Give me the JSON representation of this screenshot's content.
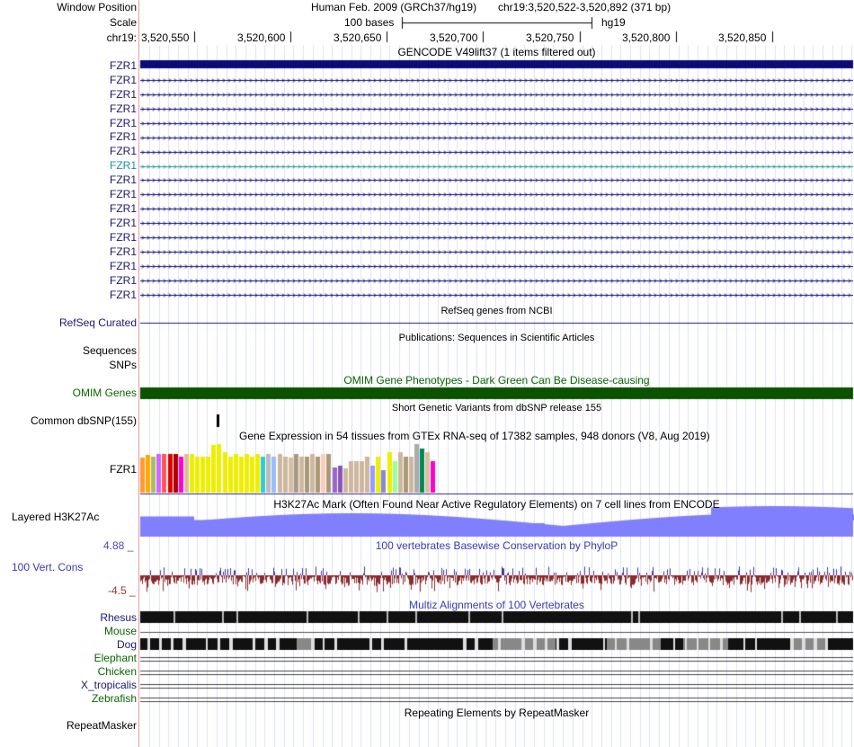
{
  "header": {
    "window_position_label": "Window Position",
    "assembly_text": "Human Feb. 2009 (GRCh37/hg19)",
    "position_text": "chr19:3,520,522-3,520,892 (371 bp)",
    "scale_label": "Scale",
    "scale_bar_text": "100 bases",
    "scale_db": "hg19",
    "chrom_label": "chr19:",
    "ruler_ticks": [
      "3,520,550",
      "3,520,600",
      "3,520,650",
      "3,520,700",
      "3,520,750",
      "3,520,800",
      "3,520,850"
    ]
  },
  "gencode": {
    "title": "GENCODE V49lift37 (1 items filtered out)",
    "transcripts": [
      "FZR1",
      "FZR1",
      "FZR1",
      "FZR1",
      "FZR1",
      "FZR1",
      "FZR1",
      "FZR1",
      "FZR1",
      "FZR1",
      "FZR1",
      "FZR1",
      "FZR1",
      "FZR1",
      "FZR1",
      "FZR1",
      "FZR1"
    ],
    "highlighted_index": 7,
    "colors": {
      "main": "#0c0c78",
      "highlight": "#1f8ea3"
    }
  },
  "refseq": {
    "label": "RefSeq Curated",
    "title": "RefSeq genes from NCBI"
  },
  "publications": {
    "label": "Sequences",
    "title": "Publications: Sequences in Scientific Articles"
  },
  "snps_label": "SNPs",
  "omim": {
    "label": "OMIM Genes",
    "title": "OMIM Gene Phenotypes - Dark Green Can Be Disease-causing",
    "color": "#0a5200"
  },
  "dbsnp": {
    "label": "Common dbSNP(155)",
    "title": "Short Genetic Variants from dbSNP release 155"
  },
  "gtex": {
    "label": "FZR1",
    "title": "Gene Expression in 54 tissues from GTEx RNA-seq of 17382 samples, 948 donors (V8, Aug 2019)",
    "bars": [
      {
        "c": "#ff9933",
        "v": 0.72
      },
      {
        "c": "#ffaa00",
        "v": 0.78
      },
      {
        "c": "#aabb66",
        "v": 0.74
      },
      {
        "c": "#cc66ff",
        "v": 0.8
      },
      {
        "c": "#ff5555",
        "v": 0.8
      },
      {
        "c": "#dd0000",
        "v": 0.8
      },
      {
        "c": "#aa0000",
        "v": 0.8
      },
      {
        "c": "#ff00cc",
        "v": 0.74
      },
      {
        "c": "#d8bfa0",
        "v": 0.8
      },
      {
        "c": "#eeee00",
        "v": 0.8
      },
      {
        "c": "#eeee00",
        "v": 0.74
      },
      {
        "c": "#eeee00",
        "v": 0.74
      },
      {
        "c": "#eeee00",
        "v": 0.74
      },
      {
        "c": "#eeee00",
        "v": 0.98
      },
      {
        "c": "#eeee00",
        "v": 1.0
      },
      {
        "c": "#eeee00",
        "v": 0.84
      },
      {
        "c": "#eeee00",
        "v": 0.74
      },
      {
        "c": "#eeee00",
        "v": 0.8
      },
      {
        "c": "#eeee00",
        "v": 0.74
      },
      {
        "c": "#eeee00",
        "v": 0.8
      },
      {
        "c": "#eeee00",
        "v": 0.74
      },
      {
        "c": "#eeee00",
        "v": 0.8
      },
      {
        "c": "#33cccc",
        "v": 0.74
      },
      {
        "c": "#bbbbbb",
        "v": 0.8
      },
      {
        "c": "#99bbff",
        "v": 0.74
      },
      {
        "c": "#cdb79e",
        "v": 0.8
      },
      {
        "c": "#cdb79e",
        "v": 0.74
      },
      {
        "c": "#d8bfa0",
        "v": 0.72
      },
      {
        "c": "#aa9988",
        "v": 0.8
      },
      {
        "c": "#cdb79e",
        "v": 0.74
      },
      {
        "c": "#aa9977",
        "v": 0.74
      },
      {
        "c": "#cdb79e",
        "v": 0.8
      },
      {
        "c": "#aa9977",
        "v": 0.74
      },
      {
        "c": "#ffccbb",
        "v": 0.8
      },
      {
        "c": "#aa9977",
        "v": 0.8
      },
      {
        "c": "#9966cc",
        "v": 0.52
      },
      {
        "c": "#8855bb",
        "v": 0.56
      },
      {
        "c": "#cdb79e",
        "v": 0.5
      },
      {
        "c": "#cdb79e",
        "v": 0.64
      },
      {
        "c": "#cdb79e",
        "v": 0.64
      },
      {
        "c": "#cdb79e",
        "v": 0.64
      },
      {
        "c": "#cdb79e",
        "v": 0.74
      },
      {
        "c": "#9999ff",
        "v": 0.56
      },
      {
        "c": "#eeee00",
        "v": 0.74
      },
      {
        "c": "#8888cc",
        "v": 0.46
      },
      {
        "c": "#eeee00",
        "v": 0.84
      },
      {
        "c": "#99ff99",
        "v": 0.64
      },
      {
        "c": "#cdb79e",
        "v": 0.84
      },
      {
        "c": "#aa9977",
        "v": 0.74
      },
      {
        "c": "#cdb79e",
        "v": 0.74
      },
      {
        "c": "#aaaaaa",
        "v": 1.0
      },
      {
        "c": "#008855",
        "v": 0.9
      },
      {
        "c": "#d8bfa0",
        "v": 0.84
      },
      {
        "c": "#ff00cc",
        "v": 0.64
      }
    ]
  },
  "h3k27ac": {
    "label": "Layered H3K27Ac",
    "title": "H3K27Ac Mark (Often Found Near Active Regulatory Elements) on 7 cell lines from ENCODE"
  },
  "phylop": {
    "label": "100 Vert. Cons",
    "title": "100 vertebrates Basewise Conservation by PhyloP",
    "max_label": "4.88 _",
    "min_label": "-4.5 _"
  },
  "multiz": {
    "title": "Multiz Alignments of 100 Vertebrates",
    "species": [
      "Rhesus",
      "Mouse",
      "Dog",
      "Elephant",
      "Chicken",
      "X_tropicalis",
      "Zebrafish"
    ]
  },
  "repeatmasker": {
    "label": "RepeatMasker",
    "title": "Repeating Elements by RepeatMasker"
  }
}
